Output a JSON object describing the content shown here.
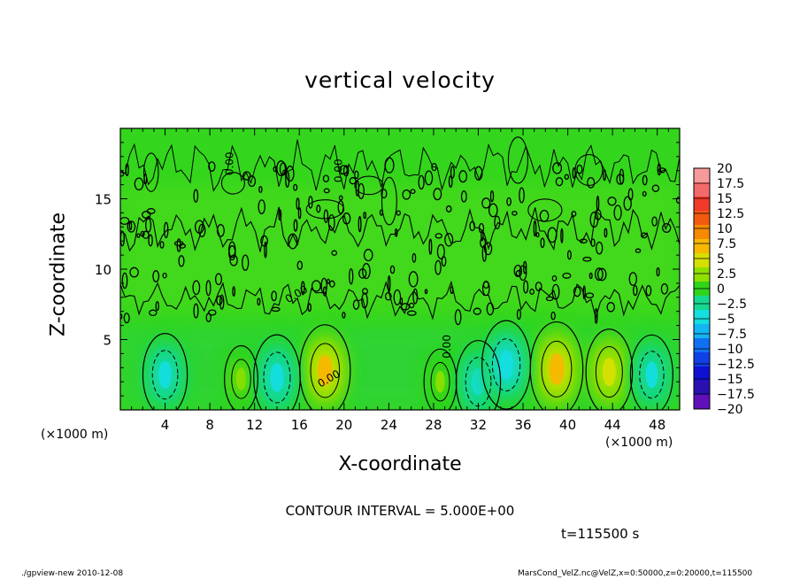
{
  "chart_data": {
    "type": "heatmap",
    "title": "vertical velocity",
    "xlabel": "X-coordinate",
    "ylabel": "Z-coordinate",
    "x_unit_label": "(×1000 m)",
    "xlim": [
      0,
      50
    ],
    "ylim": [
      0,
      20
    ],
    "x_ticks": [
      4,
      8,
      12,
      16,
      20,
      24,
      28,
      32,
      36,
      40,
      44,
      48
    ],
    "y_ticks": [
      5,
      10,
      15
    ],
    "colorbar": {
      "min": -20,
      "max": 20,
      "step": 2.5,
      "labels": [
        "20",
        "17.5",
        "15",
        "12.5",
        "10",
        "7.5",
        "5",
        "2.5",
        "0",
        "−2.5",
        "−5",
        "−7.5",
        "−10",
        "−12.5",
        "−15",
        "−17.5",
        "−20"
      ],
      "colors": [
        "#f79a9a",
        "#f26a6a",
        "#f23a2a",
        "#f25a10",
        "#f58a00",
        "#f7b800",
        "#d6e000",
        "#8ee000",
        "#2fd41a",
        "#15d890",
        "#14dede",
        "#14b6f2",
        "#1070f2",
        "#1040e6",
        "#1010d2",
        "#2a10b0",
        "#6010b8"
      ]
    },
    "cells": [
      {
        "x": 10.8,
        "z": 2.2,
        "w": 1.8
      },
      {
        "x": 28.6,
        "z": 2.0,
        "w": 1.6
      },
      {
        "x": 18.3,
        "z": 2.8,
        "w": 6.0
      },
      {
        "x": 39.0,
        "z": 2.9,
        "w": 6.5
      },
      {
        "x": 43.7,
        "z": 2.7,
        "w": 5.0
      },
      {
        "x": 4.0,
        "z": 2.5,
        "w": -4.5
      },
      {
        "x": 14.0,
        "z": 2.3,
        "w": -5.0
      },
      {
        "x": 32.0,
        "z": 2.0,
        "w": -4.5
      },
      {
        "x": 34.5,
        "z": 3.2,
        "w": -5.5
      },
      {
        "x": 47.5,
        "z": 2.5,
        "w": -4.0
      }
    ],
    "contour_labels": [
      "0.00",
      "0.00",
      "0.00",
      "0.00",
      "0.00"
    ],
    "contour_interval_text": "CONTOUR INTERVAL = 5.000E+00",
    "time_text": "t=115500 s"
  },
  "footer": {
    "left": "./gpview-new  2010-12-08",
    "right": "MarsCond_VelZ.nc@VelZ,x=0:50000,z=0:20000,t=115500"
  }
}
